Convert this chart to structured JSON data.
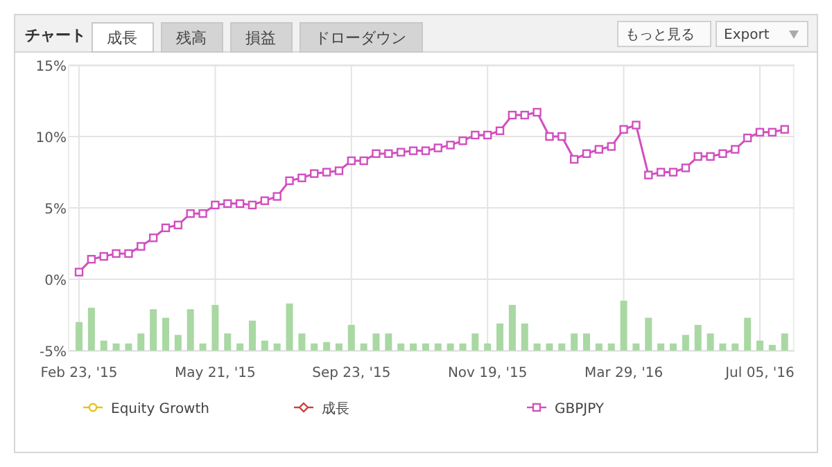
{
  "chart_data": {
    "type": "line",
    "title": "チャート",
    "annotations": [
      "成長",
      "残高",
      "損益",
      "ドローダウン",
      "もっと見る",
      "Export"
    ],
    "categories": [
      "Feb 23, '15",
      null,
      null,
      null,
      null,
      null,
      null,
      null,
      null,
      null,
      null,
      "May 21, '15",
      null,
      null,
      null,
      null,
      null,
      null,
      null,
      null,
      null,
      null,
      "Sep 23, '15",
      null,
      null,
      null,
      null,
      null,
      null,
      null,
      null,
      null,
      null,
      "Nov 19, '15",
      null,
      null,
      null,
      null,
      null,
      null,
      null,
      null,
      null,
      null,
      "Mar 29, '16",
      null,
      null,
      null,
      null,
      null,
      null,
      null,
      null,
      null,
      null,
      "Jul 05, '16",
      null,
      null
    ],
    "ylim": [
      -5,
      15
    ],
    "yticks": [
      {
        "value": -5,
        "label": "-5%"
      },
      {
        "value": 0,
        "label": "0%"
      },
      {
        "value": 5,
        "label": "5%"
      },
      {
        "value": 10,
        "label": "10%"
      },
      {
        "value": 15,
        "label": "15%"
      }
    ],
    "grid": true,
    "legend": "bottom",
    "series": [
      {
        "type": "bar",
        "color": "#a9d8a3",
        "base": [
          -5,
          -5,
          -5,
          -5,
          -5,
          -5,
          -5,
          -5,
          -5,
          -5,
          -5,
          -5,
          -5,
          -5,
          -5,
          -5,
          -5,
          -5,
          -5,
          -5,
          -5,
          -5,
          -5,
          -5,
          -5,
          -5,
          -5,
          -5,
          -5,
          -5,
          -5,
          -5,
          -5,
          -5,
          -5,
          -5,
          -5,
          -5,
          -5,
          -5,
          -5,
          -5,
          -5,
          -5,
          -5,
          -5,
          -5,
          -5,
          -5,
          -5,
          -5,
          -5,
          -5,
          -5,
          -5,
          -5,
          -5,
          -5
        ],
        "values": [
          2.0,
          3.0,
          0.7,
          0.5,
          0.5,
          1.2,
          2.9,
          2.3,
          1.1,
          2.9,
          0.5,
          3.2,
          1.2,
          0.5,
          2.1,
          0.7,
          0.5,
          3.3,
          1.2,
          0.5,
          0.6,
          0.5,
          1.8,
          0.5,
          1.2,
          1.2,
          0.5,
          0.5,
          0.5,
          0.5,
          0.5,
          0.5,
          1.2,
          0.5,
          1.9,
          3.2,
          1.9,
          0.5,
          0.5,
          0.5,
          1.2,
          1.2,
          0.5,
          0.5,
          3.5,
          0.5,
          2.3,
          0.5,
          0.5,
          1.1,
          1.8,
          1.2,
          0.5,
          0.5,
          2.3,
          0.7,
          0.4,
          1.2
        ]
      },
      {
        "name": "Equity Growth",
        "color": "#e6c21a",
        "marker": "circle",
        "values": [
          null,
          null,
          null,
          null,
          null,
          null,
          null,
          null,
          null,
          null,
          null,
          null,
          null,
          null,
          null,
          null,
          null,
          null,
          null,
          null,
          null,
          null,
          null,
          null,
          null,
          null,
          null,
          null,
          null,
          null,
          null,
          null,
          null,
          null,
          null,
          null,
          null,
          null,
          null,
          null,
          null,
          null,
          null,
          null,
          null,
          null,
          null,
          null,
          null,
          null,
          null,
          null,
          null,
          null,
          null,
          null,
          null,
          null
        ]
      },
      {
        "name": "成長",
        "color": "#c9423f",
        "marker": "diamond",
        "values": [
          null,
          null,
          null,
          null,
          null,
          null,
          null,
          null,
          null,
          null,
          null,
          null,
          null,
          null,
          null,
          null,
          null,
          null,
          null,
          null,
          null,
          null,
          null,
          null,
          null,
          null,
          null,
          null,
          null,
          null,
          null,
          null,
          null,
          null,
          null,
          null,
          null,
          null,
          null,
          null,
          null,
          null,
          null,
          null,
          null,
          null,
          null,
          null,
          null,
          null,
          null,
          null,
          null,
          null,
          null,
          null,
          null,
          null
        ]
      },
      {
        "name": "GBPJPY",
        "color": "#d14fbf",
        "marker": "square",
        "values": [
          0.5,
          1.4,
          1.6,
          1.8,
          1.8,
          2.3,
          2.9,
          3.6,
          3.8,
          4.6,
          4.6,
          5.2,
          5.3,
          5.3,
          5.2,
          5.5,
          5.8,
          6.9,
          7.1,
          7.4,
          7.5,
          7.6,
          8.3,
          8.3,
          8.8,
          8.8,
          8.9,
          9.0,
          9.0,
          9.2,
          9.4,
          9.7,
          10.1,
          10.1,
          10.4,
          11.5,
          11.5,
          11.7,
          10.0,
          10.0,
          8.4,
          8.8,
          9.1,
          9.3,
          10.5,
          10.8,
          7.3,
          7.5,
          7.5,
          7.8,
          8.6,
          8.6,
          8.8,
          9.1,
          9.9,
          10.3,
          10.3,
          10.5
        ]
      }
    ]
  }
}
